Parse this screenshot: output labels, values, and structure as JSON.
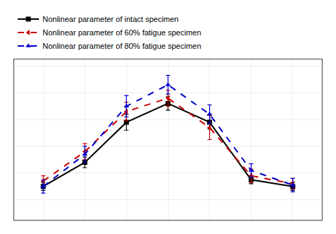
{
  "chart_data": {
    "type": "line",
    "x": [
      1,
      2,
      3,
      4,
      5,
      6,
      7
    ],
    "series": [
      {
        "name": "Nonlinear parameter of intact specimen",
        "color": "#000000",
        "marker": "square",
        "line_style": "solid",
        "values": [
          0.1,
          0.28,
          0.58,
          0.72,
          0.58,
          0.15,
          0.1
        ],
        "errors": [
          0.03,
          0.04,
          0.06,
          0.05,
          0.05,
          0.03,
          0.03
        ]
      },
      {
        "name": "Nonlinear parameter of 60% fatigue specimen",
        "color": "#cc0000",
        "marker": "triangle-left",
        "line_style": "dashed",
        "values": [
          0.14,
          0.36,
          0.66,
          0.76,
          0.54,
          0.18,
          0.12
        ],
        "errors": [
          0.04,
          0.06,
          0.07,
          0.06,
          0.09,
          0.05,
          0.04
        ]
      },
      {
        "name": "Nonlinear parameter of 80% fatigue specimen",
        "color": "#0000cc",
        "marker": "triangle-up",
        "line_style": "dashed",
        "values": [
          0.1,
          0.34,
          0.7,
          0.86,
          0.64,
          0.22,
          0.11
        ],
        "errors": [
          0.05,
          0.06,
          0.08,
          0.07,
          0.07,
          0.05,
          0.05
        ]
      }
    ],
    "xlim": [
      0.3,
      7.7
    ],
    "xticks": [
      1,
      2,
      3,
      4,
      5,
      6,
      7
    ],
    "ylim": [
      -0.15,
      1.05
    ],
    "yticks": [
      0,
      0.2,
      0.4,
      0.6,
      0.8,
      1.0
    ],
    "grid": true,
    "tick_labels": false,
    "legend": "upper left"
  }
}
